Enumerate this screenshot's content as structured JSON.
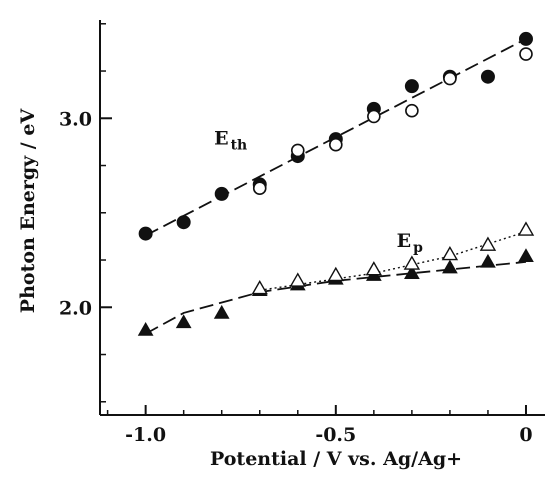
{
  "chart_data": {
    "type": "scatter",
    "xlabel": "Potential / V vs. Ag/Ag+",
    "ylabel": "Photon Energy / eV",
    "xlim": [
      -1.12,
      0.05
    ],
    "ylim": [
      1.43,
      3.52
    ],
    "x_ticks": [
      -1.0,
      -0.5,
      0
    ],
    "x_tick_labels": [
      "-1.0",
      "-0.5",
      "0"
    ],
    "y_ticks": [
      2.0,
      3.0
    ],
    "y_tick_labels": [
      "2.0",
      "3.0"
    ],
    "grid": false,
    "annotations": [
      {
        "main": "E",
        "sub": "th",
        "x": -0.82,
        "y": 2.86
      },
      {
        "main": "E",
        "sub": "p",
        "x": -0.34,
        "y": 2.32
      }
    ],
    "series": [
      {
        "marker": "filled-circle",
        "x": [
          -1.0,
          -0.9,
          -0.8,
          -0.7,
          -0.6,
          -0.5,
          -0.4,
          -0.3,
          -0.2,
          -0.1,
          0.0
        ],
        "y": [
          2.39,
          2.45,
          2.6,
          2.65,
          2.8,
          2.89,
          3.05,
          3.17,
          3.22,
          3.22,
          3.42
        ]
      },
      {
        "marker": "open-circle",
        "x": [
          -0.7,
          -0.6,
          -0.5,
          -0.4,
          -0.3,
          -0.2,
          0.0
        ],
        "y": [
          2.63,
          2.83,
          2.86,
          3.01,
          3.04,
          3.21,
          3.34
        ]
      },
      {
        "marker": "filled-triangle",
        "x": [
          -1.0,
          -0.9,
          -0.8,
          -0.7,
          -0.6,
          -0.5,
          -0.4,
          -0.3,
          -0.2,
          -0.1,
          0.0
        ],
        "y": [
          1.88,
          1.92,
          1.97,
          2.09,
          2.12,
          2.15,
          2.17,
          2.18,
          2.21,
          2.24,
          2.27
        ]
      },
      {
        "marker": "open-triangle",
        "x": [
          -0.7,
          -0.6,
          -0.5,
          -0.4,
          -0.3,
          -0.2,
          -0.1,
          0.0
        ],
        "y": [
          2.1,
          2.14,
          2.17,
          2.2,
          2.23,
          2.28,
          2.33,
          2.41
        ]
      }
    ],
    "fit_lines": [
      {
        "style": "long-dash",
        "x": [
          -1.0,
          0.0
        ],
        "y": [
          2.38,
          3.42
        ]
      },
      {
        "style": "long-dash",
        "x": [
          -1.0,
          -0.9,
          -0.7,
          -0.5,
          -0.3,
          0.0
        ],
        "y": [
          1.86,
          1.97,
          2.08,
          2.14,
          2.18,
          2.24
        ]
      },
      {
        "style": "dotted",
        "x": [
          -0.7,
          -0.4,
          -0.2,
          0.0
        ],
        "y": [
          2.09,
          2.18,
          2.27,
          2.4
        ]
      }
    ]
  }
}
